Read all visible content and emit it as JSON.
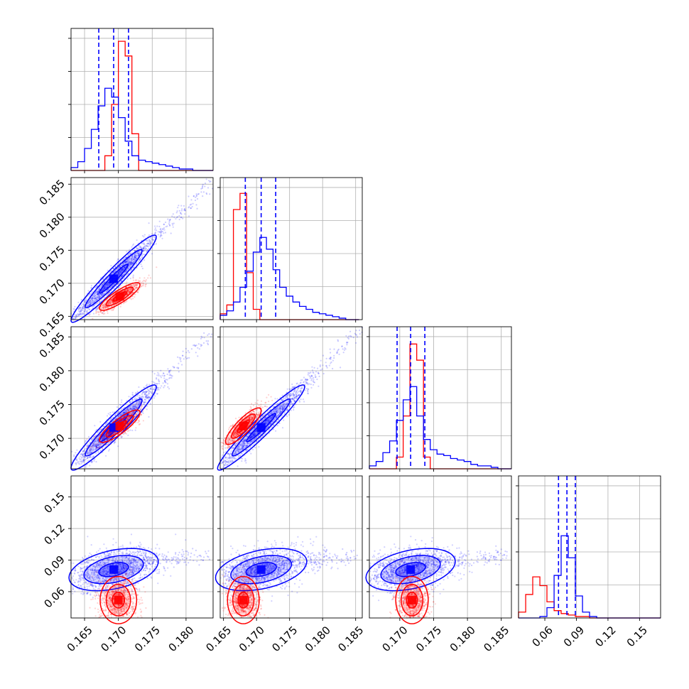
{
  "chart_data": {
    "type": "corner",
    "n_params": 4,
    "grid": true,
    "colors": {
      "blue": "#0000ff",
      "red": "#ff0000"
    },
    "ranges": [
      [
        0.163,
        0.184
      ],
      [
        0.1645,
        0.186
      ],
      [
        0.1655,
        0.1865
      ],
      [
        0.035,
        0.17
      ]
    ],
    "xtick_labels": [
      [
        "0.165",
        "0.170",
        "0.175",
        "0.180"
      ],
      [
        "0.165",
        "0.170",
        "0.175",
        "0.180",
        "0.185"
      ],
      [
        "0.170",
        "0.175",
        "0.180",
        "0.185"
      ],
      [
        "0.06",
        "0.09",
        "0.12",
        "0.15"
      ]
    ],
    "ytick_labels": {
      "1": [
        "0.165",
        "0.170",
        "0.175",
        "0.180",
        "0.185"
      ],
      "2": [
        "0.170",
        "0.175",
        "0.180",
        "0.185"
      ],
      "3": [
        "0.06",
        "0.09",
        "0.12",
        "0.15"
      ]
    },
    "quantiles_blue": [
      [
        0.1671,
        0.1693,
        0.1715
      ],
      [
        0.1683,
        0.1707,
        0.1729
      ],
      [
        0.1696,
        0.1716,
        0.1737
      ],
      [
        0.073,
        0.081,
        0.089
      ]
    ],
    "hist_blue": [
      {
        "edges": [
          0.163,
          0.164,
          0.165,
          0.166,
          0.167,
          0.168,
          0.169,
          0.17,
          0.171,
          0.172,
          0.173,
          0.174,
          0.175,
          0.176,
          0.177,
          0.178,
          0.179,
          0.18,
          0.181,
          0.182,
          0.183,
          0.184
        ],
        "counts": [
          2,
          6,
          15,
          28,
          44,
          56,
          50,
          36,
          20,
          10,
          7,
          6,
          5,
          4,
          3,
          2,
          1,
          1,
          0,
          0,
          0
        ]
      },
      {
        "edges": [
          0.1645,
          0.1655,
          0.1665,
          0.1675,
          0.1685,
          0.1695,
          0.1705,
          0.1715,
          0.1725,
          0.1735,
          0.1745,
          0.1755,
          0.1765,
          0.1775,
          0.1785,
          0.1795,
          0.1805,
          0.1815,
          0.1825,
          0.1835,
          0.1845,
          0.1855
        ],
        "counts": [
          3,
          6,
          12,
          22,
          33,
          46,
          56,
          48,
          34,
          22,
          16,
          12,
          9,
          7,
          5,
          4,
          3,
          2,
          1,
          0,
          0
        ]
      },
      {
        "edges": [
          0.1655,
          0.1665,
          0.1675,
          0.1685,
          0.1695,
          0.1705,
          0.1715,
          0.1725,
          0.1735,
          0.1745,
          0.1755,
          0.1765,
          0.1775,
          0.1785,
          0.1795,
          0.1805,
          0.1815,
          0.1825,
          0.1835,
          0.1845,
          0.1855,
          0.1865
        ],
        "counts": [
          2,
          5,
          11,
          19,
          33,
          47,
          56,
          36,
          20,
          13,
          10,
          9,
          7,
          6,
          5,
          3,
          2,
          2,
          1,
          0,
          0
        ]
      },
      {
        "edges": [
          0.035,
          0.0418,
          0.0485,
          0.0553,
          0.062,
          0.0688,
          0.0755,
          0.0823,
          0.089,
          0.0958,
          0.1025,
          0.1093,
          0.116,
          0.1228,
          0.1295,
          0.1363,
          0.143,
          0.1498,
          0.1565,
          0.1633,
          0.17
        ],
        "counts": [
          0,
          0,
          0,
          1,
          7,
          29,
          56,
          41,
          15,
          4,
          1,
          0,
          0,
          0,
          0,
          0,
          0,
          0,
          0,
          0
        ]
      }
    ],
    "hist_red": [
      {
        "edges": [
          0.163,
          0.164,
          0.165,
          0.166,
          0.167,
          0.168,
          0.169,
          0.17,
          0.171,
          0.172,
          0.173,
          0.174,
          0.175,
          0.176,
          0.177,
          0.178,
          0.179,
          0.18,
          0.181,
          0.182,
          0.183,
          0.184
        ],
        "counts": [
          0,
          0,
          0,
          0,
          0,
          10,
          45,
          88,
          78,
          25,
          0,
          0,
          0,
          0,
          0,
          0,
          0,
          0,
          0,
          0,
          0
        ]
      },
      {
        "edges": [
          0.1645,
          0.1655,
          0.1665,
          0.1675,
          0.1685,
          0.1695,
          0.1705,
          0.1715,
          0.1725,
          0.1735,
          0.1745,
          0.1755,
          0.1765,
          0.1775,
          0.1785,
          0.1795,
          0.1805,
          0.1815,
          0.1825,
          0.1835,
          0.1845,
          0.1855
        ],
        "counts": [
          4,
          10,
          75,
          86,
          32,
          7,
          0,
          0,
          0,
          0,
          0,
          0,
          0,
          0,
          0,
          0,
          0,
          0,
          0,
          0,
          0
        ]
      },
      {
        "edges": [
          0.1655,
          0.1665,
          0.1675,
          0.1685,
          0.1695,
          0.1705,
          0.1715,
          0.1725,
          0.1735,
          0.1745,
          0.1755,
          0.1765,
          0.1775,
          0.1785,
          0.1795,
          0.1805,
          0.1815,
          0.1825,
          0.1835,
          0.1845,
          0.1855,
          0.1865
        ],
        "counts": [
          0,
          0,
          0,
          0,
          8,
          36,
          85,
          74,
          8,
          0,
          0,
          0,
          0,
          0,
          0,
          0,
          0,
          0,
          0,
          0,
          0
        ]
      },
      {
        "edges": [
          0.035,
          0.0418,
          0.0485,
          0.0553,
          0.062,
          0.0688,
          0.0755,
          0.0823,
          0.089,
          0.0958,
          0.1025,
          0.1093,
          0.116,
          0.1228,
          0.1295,
          0.1363,
          0.143,
          0.1498,
          0.1565,
          0.1633,
          0.17
        ],
        "counts": [
          4,
          16,
          28,
          22,
          11,
          5,
          3,
          2,
          1,
          1,
          0,
          0,
          0,
          0,
          0,
          0,
          0,
          0,
          0,
          0
        ]
      }
    ],
    "pairs_blue": [
      {
        "i": 1,
        "j": 0,
        "mean": [
          0.1693,
          0.1707
        ],
        "sd": [
          0.0021,
          0.0022
        ],
        "rho": 0.96,
        "tail": {
          "from": [
            0.17,
            0.1715
          ],
          "to": [
            0.184,
            0.1855
          ]
        }
      },
      {
        "i": 2,
        "j": 0,
        "mean": [
          0.1693,
          0.1716
        ],
        "sd": [
          0.0021,
          0.0021
        ],
        "rho": 0.95,
        "tail": {
          "from": [
            0.17,
            0.1722
          ],
          "to": [
            0.184,
            0.186
          ]
        }
      },
      {
        "i": 2,
        "j": 1,
        "mean": [
          0.1707,
          0.1716
        ],
        "sd": [
          0.0022,
          0.0021
        ],
        "rho": 0.96,
        "tail": {
          "from": [
            0.1715,
            0.1722
          ],
          "to": [
            0.1855,
            0.186
          ]
        }
      },
      {
        "i": 3,
        "j": 0,
        "mean": [
          0.1693,
          0.081
        ],
        "sd": [
          0.0022,
          0.0067
        ],
        "rho": 0.38,
        "tail": {
          "from": [
            0.171,
            0.085
          ],
          "to": [
            0.183,
            0.094
          ]
        }
      },
      {
        "i": 3,
        "j": 1,
        "mean": [
          0.1707,
          0.081
        ],
        "sd": [
          0.0023,
          0.0067
        ],
        "rho": 0.38,
        "tail": {
          "from": [
            0.172,
            0.085
          ],
          "to": [
            0.185,
            0.094
          ]
        }
      },
      {
        "i": 3,
        "j": 2,
        "mean": [
          0.1716,
          0.081
        ],
        "sd": [
          0.0022,
          0.0067
        ],
        "rho": 0.38,
        "tail": {
          "from": [
            0.173,
            0.085
          ],
          "to": [
            0.1855,
            0.094
          ]
        }
      }
    ],
    "pairs_red": [
      {
        "i": 1,
        "j": 0,
        "mean": [
          0.1702,
          0.168
        ],
        "sd": [
          0.001,
          0.0007
        ],
        "rho": 0.85
      },
      {
        "i": 2,
        "j": 0,
        "mean": [
          0.1702,
          0.1718
        ],
        "sd": [
          0.001,
          0.0008
        ],
        "rho": 0.85
      },
      {
        "i": 2,
        "j": 1,
        "mean": [
          0.168,
          0.1718
        ],
        "sd": [
          0.0009,
          0.0009
        ],
        "rho": 0.85
      },
      {
        "i": 3,
        "j": 0,
        "mean": [
          0.17,
          0.052
        ],
        "sd": [
          0.0009,
          0.0075
        ],
        "rho": 0.0
      },
      {
        "i": 3,
        "j": 1,
        "mean": [
          0.168,
          0.052
        ],
        "sd": [
          0.0008,
          0.0075
        ],
        "rho": 0.0
      },
      {
        "i": 3,
        "j": 2,
        "mean": [
          0.1718,
          0.052
        ],
        "sd": [
          0.0008,
          0.0075
        ],
        "rho": 0.0
      }
    ]
  }
}
